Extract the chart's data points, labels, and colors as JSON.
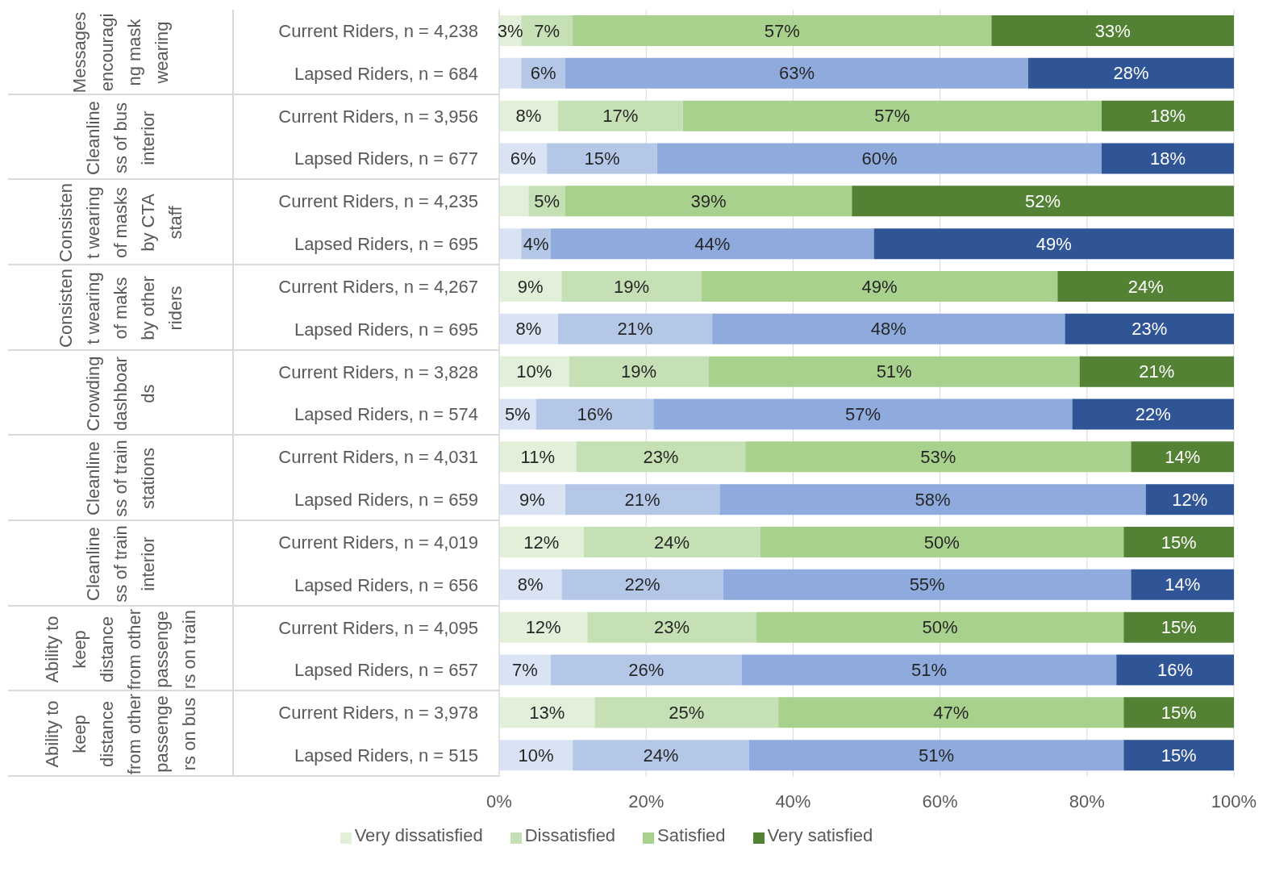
{
  "chart_data": {
    "type": "bar",
    "orientation": "horizontal",
    "stacked": true,
    "categories": [
      "Current Riders, n = 4,238",
      "Lapsed Riders, n = 684",
      "Current Riders, n = 3,956",
      "Lapsed Riders, n = 677",
      "Current Riders, n = 4,235",
      "Lapsed Riders, n = 695",
      "Current Riders, n = 4,267",
      "Lapsed Riders, n = 695",
      "Current Riders, n = 3,828",
      "Lapsed Riders, n = 574",
      "Current Riders, n = 4,031",
      "Lapsed Riders, n = 659",
      "Current Riders, n = 4,019",
      "Lapsed Riders, n = 656",
      "Current Riders, n = 4,095",
      "Lapsed Riders, n = 657",
      "Current Riders, n = 3,978",
      "Lapsed Riders, n = 515"
    ],
    "annotations": [
      "Messages encouraging mask wearing",
      "Cleanliness of bus interior",
      "Consistent wearing of masks by CTA staff",
      "Consistent wearing of maks by other riders",
      "Crowding dashboards",
      "Cleanliness of train stations",
      "Cleanliness of train interior",
      "Ability to keep distance from other passengers on train",
      "Ability to keep distance from other passengers on bus"
    ],
    "series": [
      {
        "name": "Very dissatisfied",
        "color": "#e2f0d9",
        "colors": [
          "#e2f0d9",
          "#dae3f3",
          "#e2f0d9",
          "#dae3f3",
          "#e2f0d9",
          "#dae3f3",
          "#e2f0d9",
          "#dae3f3",
          "#e2f0d9",
          "#dae3f3",
          "#e2f0d9",
          "#dae3f3",
          "#e2f0d9",
          "#dae3f3",
          "#e2f0d9",
          "#dae3f3",
          "#e2f0d9",
          "#dae3f3"
        ],
        "values": [
          3,
          3,
          8,
          6.5,
          4,
          3,
          8.5,
          8,
          9.5,
          5,
          10.5,
          9,
          11.5,
          8.5,
          12,
          7,
          13,
          10
        ],
        "value_labels": [
          "3%",
          null,
          "8%",
          "6%",
          null,
          null,
          "9%",
          "8%",
          "10%",
          "5%",
          "11%",
          "9%",
          "12%",
          "8%",
          "12%",
          "7%",
          "13%",
          "10%"
        ]
      },
      {
        "name": "Dissatisfied",
        "color": "#c5e0b4",
        "colors": [
          "#c5e0b4",
          "#b4c7e7",
          "#c5e0b4",
          "#b4c7e7",
          "#c5e0b4",
          "#b4c7e7",
          "#c5e0b4",
          "#b4c7e7",
          "#c5e0b4",
          "#b4c7e7",
          "#c5e0b4",
          "#b4c7e7",
          "#c5e0b4",
          "#b4c7e7",
          "#c5e0b4",
          "#b4c7e7",
          "#c5e0b4",
          "#b4c7e7"
        ],
        "values": [
          7,
          6,
          17,
          15,
          5,
          4,
          19,
          21,
          19,
          16,
          23,
          21,
          24,
          22,
          23,
          26,
          25,
          24
        ],
        "value_labels": [
          "7%",
          "6%",
          "17%",
          "15%",
          "5%",
          "4%",
          "19%",
          "21%",
          "19%",
          "16%",
          "23%",
          "21%",
          "24%",
          "22%",
          "23%",
          "26%",
          "25%",
          "24%"
        ]
      },
      {
        "name": "Satisfied",
        "color": "#a9d18e",
        "colors": [
          "#a9d18e",
          "#8faadc",
          "#a9d18e",
          "#8faadc",
          "#a9d18e",
          "#8faadc",
          "#a9d18e",
          "#8faadc",
          "#a9d18e",
          "#8faadc",
          "#a9d18e",
          "#8faadc",
          "#a9d18e",
          "#8faadc",
          "#a9d18e",
          "#8faadc",
          "#a9d18e",
          "#8faadc"
        ],
        "values": [
          57,
          63,
          57,
          60.5,
          39,
          44,
          48.5,
          48,
          50.5,
          57,
          52.5,
          58,
          49.5,
          55.5,
          50,
          51,
          47,
          51
        ],
        "value_labels": [
          "57%",
          "63%",
          "57%",
          "60%",
          "39%",
          "44%",
          "49%",
          "48%",
          "51%",
          "57%",
          "53%",
          "58%",
          "50%",
          "55%",
          "50%",
          "51%",
          "47%",
          "51%"
        ]
      },
      {
        "name": "Very satisfied",
        "color": "#548235",
        "colors": [
          "#548235",
          "#2f5597",
          "#548235",
          "#2f5597",
          "#548235",
          "#2f5597",
          "#548235",
          "#2f5597",
          "#548235",
          "#2f5597",
          "#548235",
          "#2f5597",
          "#548235",
          "#2f5597",
          "#548235",
          "#2f5597",
          "#548235",
          "#2f5597"
        ],
        "values": [
          33,
          28,
          18,
          18,
          52,
          49,
          24,
          23,
          21,
          22,
          14,
          12,
          15,
          14,
          15,
          16,
          15,
          15
        ],
        "value_labels": [
          "33%",
          "28%",
          "18%",
          "18%",
          "52%",
          "49%",
          "24%",
          "23%",
          "21%",
          "22%",
          "14%",
          "12%",
          "15%",
          "14%",
          "15%",
          "16%",
          "15%",
          "15%"
        ]
      }
    ],
    "xlim": [
      0,
      100
    ],
    "xticks": [
      {
        "value": 0,
        "label": "0%"
      },
      {
        "value": 20,
        "label": "20%"
      },
      {
        "value": 40,
        "label": "40%"
      },
      {
        "value": 60,
        "label": "60%"
      },
      {
        "value": 80,
        "label": "80%"
      },
      {
        "value": 100,
        "label": "100%"
      }
    ],
    "grid": "x",
    "legend": "bottom"
  }
}
